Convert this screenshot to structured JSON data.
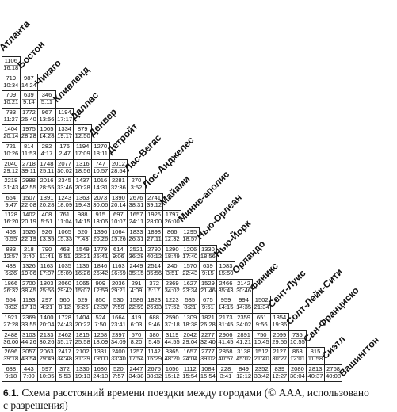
{
  "cities": [
    "Атланта",
    "Бостон",
    "Чикаго",
    "Кливленд",
    "Даллас",
    "Денвер",
    "Детройт",
    "Лас-Вегас",
    "Лос-Анджелес",
    "Майами",
    "Минне-аполис",
    "Нью-Орлеан",
    "Нью-Йорк",
    "Орландо",
    "Финикс",
    "Сент-Луис",
    "Солт-Лейк-Сити",
    "Сан-Франциско",
    "Сиэтл",
    "Вашингтон"
  ],
  "rows": [
    [
      [
        "1106",
        "16:18"
      ]
    ],
    [
      [
        "719",
        "10:34"
      ],
      [
        "987",
        "14:24"
      ]
    ],
    [
      [
        "709",
        "10:21"
      ],
      [
        "639",
        "9:14"
      ],
      [
        "346",
        "5:11"
      ]
    ],
    [
      [
        "783",
        "11:27"
      ],
      [
        "1772",
        "25:40"
      ],
      [
        "967",
        "13:56"
      ],
      [
        "1194",
        "17:17"
      ]
    ],
    [
      [
        "1404",
        "20:14"
      ],
      [
        "1975",
        "28:28"
      ],
      [
        "1005",
        "14:28"
      ],
      [
        "1334",
        "19:17"
      ],
      [
        "879",
        "12:50"
      ]
    ],
    [
      [
        "721",
        "10:26"
      ],
      [
        "814",
        "11:53"
      ],
      [
        "282",
        "4:17"
      ],
      [
        "176",
        "2:47"
      ],
      [
        "1194",
        "17:09"
      ],
      [
        "1270",
        "18:11"
      ]
    ],
    [
      [
        "2040",
        "29:12"
      ],
      [
        "2718",
        "39:11"
      ],
      [
        "1748",
        "25:11"
      ],
      [
        "2077",
        "30:02"
      ],
      [
        "1316",
        "18:56"
      ],
      [
        "747",
        "10:57"
      ],
      [
        "2012",
        "28:54"
      ]
    ],
    [
      [
        "2218",
        "31:43"
      ],
      [
        "2988",
        "42:55"
      ],
      [
        "2016",
        "28:55"
      ],
      [
        "2345",
        "33:46"
      ],
      [
        "1437",
        "20:28"
      ],
      [
        "1016",
        "14:31"
      ],
      [
        "2281",
        "32:36"
      ],
      [
        "270",
        "3:52"
      ]
    ],
    [
      [
        "664",
        "9:47"
      ],
      [
        "1507",
        "22:08"
      ],
      [
        "1391",
        "20:28"
      ],
      [
        "1243",
        "18:09"
      ],
      [
        "1363",
        "19:43"
      ],
      [
        "2073",
        "30:06"
      ],
      [
        "1390",
        "20:14"
      ],
      [
        "2676",
        "38:31"
      ],
      [
        "2741",
        "39:12"
      ]
    ],
    [
      [
        "1128",
        "16:20"
      ],
      [
        "1402",
        "20:19"
      ],
      [
        "408",
        "5:51"
      ],
      [
        "761",
        "11:04"
      ],
      [
        "988",
        "14:15"
      ],
      [
        "915",
        "13:06"
      ],
      [
        "697",
        "10:07"
      ],
      [
        "1657",
        "24:11"
      ],
      [
        "1926",
        "28:00"
      ],
      [
        "1797",
        "26:00"
      ]
    ],
    [
      [
        "468",
        "6:55"
      ],
      [
        "1526",
        "22:19"
      ],
      [
        "926",
        "13:35"
      ],
      [
        "1065",
        "15:33"
      ],
      [
        "520",
        "7:43"
      ],
      [
        "1396",
        "20:26"
      ],
      [
        "1064",
        "15:26"
      ],
      [
        "1833",
        "26:31"
      ],
      [
        "1898",
        "27:11"
      ],
      [
        "866",
        "12:32"
      ],
      [
        "1295",
        "18:57"
      ]
    ],
    [
      [
        "883",
        "12:57"
      ],
      [
        "218",
        "3:40"
      ],
      [
        "790",
        "11:41"
      ],
      [
        "463",
        "6:51"
      ],
      [
        "1549",
        "22:21"
      ],
      [
        "1779",
        "25:41"
      ],
      [
        "614",
        "9:06"
      ],
      [
        "2521",
        "36:28"
      ],
      [
        "2790",
        "40:12"
      ],
      [
        "1290",
        "18:49"
      ],
      [
        "1206",
        "17:40"
      ],
      [
        "1330",
        "18:56"
      ]
    ],
    [
      [
        "438",
        "6:26"
      ],
      [
        "1326",
        "19:06"
      ],
      [
        "1163",
        "17:07"
      ],
      [
        "1035",
        "15:09"
      ],
      [
        "1136",
        "16:26"
      ],
      [
        "1846",
        "26:42"
      ],
      [
        "1163",
        "16:59"
      ],
      [
        "2449",
        "35:15"
      ],
      [
        "2514",
        "35:56"
      ],
      [
        "240",
        "3:51"
      ],
      [
        "1570",
        "22:43"
      ],
      [
        "639",
        "9:15"
      ],
      [
        "1083",
        "15:50"
      ]
    ],
    [
      [
        "1866",
        "26:32"
      ],
      [
        "2700",
        "38:45"
      ],
      [
        "1803",
        "25:56"
      ],
      [
        "2060",
        "29:42"
      ],
      [
        "1065",
        "15:07"
      ],
      [
        "909",
        "12:59"
      ],
      [
        "2036",
        "29:21"
      ],
      [
        "291",
        "4:09"
      ],
      [
        "372",
        "5:17"
      ],
      [
        "2369",
        "34:02"
      ],
      [
        "1627",
        "23:34"
      ],
      [
        "1529",
        "21:46"
      ],
      [
        "2466",
        "35:43"
      ],
      [
        "2142",
        "30:46"
      ]
    ],
    [
      [
        "554",
        "8:02"
      ],
      [
        "1193",
        "17:13"
      ],
      [
        "297",
        "4:21"
      ],
      [
        "560",
        "8:12"
      ],
      [
        "629",
        "9:25"
      ],
      [
        "850",
        "12:37"
      ],
      [
        "530",
        "7:59"
      ],
      [
        "1586",
        "22:59"
      ],
      [
        "1823",
        "26:03"
      ],
      [
        "1223",
        "17:52"
      ],
      [
        "535",
        "8:21"
      ],
      [
        "675",
        "9:51"
      ],
      [
        "959",
        "14:15"
      ],
      [
        "994",
        "14:35"
      ],
      [
        "1502",
        "21:34"
      ]
    ],
    [
      [
        "1921",
        "27:28"
      ],
      [
        "2369",
        "33:55"
      ],
      [
        "1400",
        "20:04"
      ],
      [
        "1728",
        "24:43"
      ],
      [
        "1404",
        "20:22"
      ],
      [
        "524",
        "7:50"
      ],
      [
        "1664",
        "23:41"
      ],
      [
        "419",
        "6:03"
      ],
      [
        "688",
        "9:46"
      ],
      [
        "2590",
        "37:18"
      ],
      [
        "1309",
        "18:38"
      ],
      [
        "1821",
        "26:28"
      ],
      [
        "2173",
        "31:45"
      ],
      [
        "2359",
        "34:02"
      ],
      [
        "651",
        "9:56"
      ],
      [
        "1354",
        "19:36"
      ]
    ],
    [
      [
        "2488",
        "36:00"
      ],
      [
        "3103",
        "44:26"
      ],
      [
        "2133",
        "30:26"
      ],
      [
        "2462",
        "35:17"
      ],
      [
        "1815",
        "25:58"
      ],
      [
        "1268",
        "18:09"
      ],
      [
        "2397",
        "34:09"
      ],
      [
        "570",
        "8:20"
      ],
      [
        "380",
        "5:45"
      ],
      [
        "3119",
        "44:55"
      ],
      [
        "2042",
        "29:04"
      ],
      [
        "2277",
        "32:40"
      ],
      [
        "2906",
        "41:45"
      ],
      [
        "2891",
        "41:21"
      ],
      [
        "750",
        "10:45"
      ],
      [
        "2099",
        "29:56"
      ],
      [
        "735",
        "10:55"
      ]
    ],
    [
      [
        "2696",
        "39:18"
      ],
      [
        "3057",
        "43:54"
      ],
      [
        "2063",
        "29:49"
      ],
      [
        "2417",
        "34:48"
      ],
      [
        "2102",
        "31:39"
      ],
      [
        "1331",
        "19:00"
      ],
      [
        "2400",
        "33:40"
      ],
      [
        "1257",
        "17:54"
      ],
      [
        "1142",
        "16:29"
      ],
      [
        "3365",
        "48:20"
      ],
      [
        "1657",
        "24:04"
      ],
      [
        "2777",
        "39:02"
      ],
      [
        "2858",
        "40:57"
      ],
      [
        "3138",
        "45:02"
      ],
      [
        "1512",
        "21:40"
      ],
      [
        "2127",
        "30:27"
      ],
      [
        "863",
        "12:01"
      ],
      [
        "815",
        "11:58"
      ]
    ],
    [
      [
        "638",
        "9:18"
      ],
      [
        "443",
        "7:00"
      ],
      [
        "597",
        "10:35"
      ],
      [
        "372",
        "5:53"
      ],
      [
        "1330",
        "19:13"
      ],
      [
        "1680",
        "24:10"
      ],
      [
        "520",
        "7:57"
      ],
      [
        "2447",
        "34:38"
      ],
      [
        "2675",
        "38:32"
      ],
      [
        "1056",
        "15:12"
      ],
      [
        "1112",
        "15:54"
      ],
      [
        "1084",
        "15:54"
      ],
      [
        "228",
        "3:41"
      ],
      [
        "849",
        "12:12"
      ],
      [
        "2352",
        "33:42"
      ],
      [
        "839",
        "12:27"
      ],
      [
        "2080",
        "30:04"
      ],
      [
        "2813",
        "40:37"
      ],
      [
        "2768",
        "40:08"
      ]
    ]
  ],
  "caption": {
    "number": "6.1.",
    "line1": " Схема расстояний времени поездки между городами (© AAA, использовано",
    "line2": "с разрешения)"
  }
}
